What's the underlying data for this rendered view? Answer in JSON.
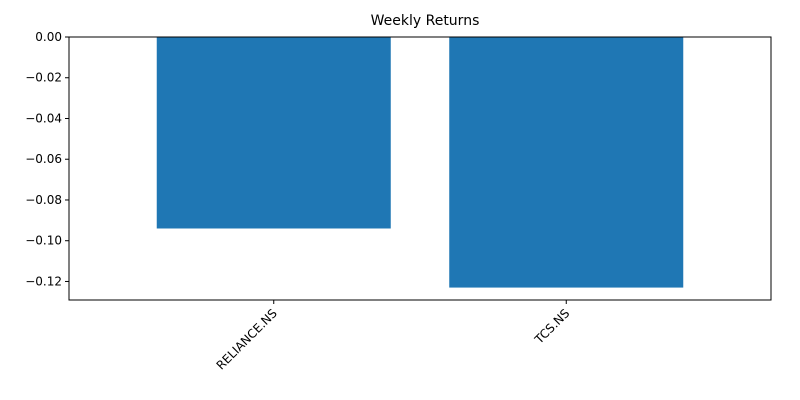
{
  "chart_data": {
    "type": "bar",
    "title": "Weekly Returns",
    "xlabel": "",
    "ylabel": "",
    "categories": [
      "RELIANCE.NS",
      "TCS.NS"
    ],
    "values": [
      -0.094,
      -0.123
    ],
    "ylim": [
      -0.1291,
      0.0
    ],
    "yticks": [
      0.0,
      -0.02,
      -0.04,
      -0.06,
      -0.08,
      -0.1,
      -0.12
    ],
    "ytick_labels": [
      "0.00",
      "−0.02",
      "−0.04",
      "−0.06",
      "−0.08",
      "−0.10",
      "−0.12"
    ],
    "bar_color": "#1f77b4",
    "grid": false,
    "legend": "none",
    "xtick_rotation_deg": 45
  }
}
